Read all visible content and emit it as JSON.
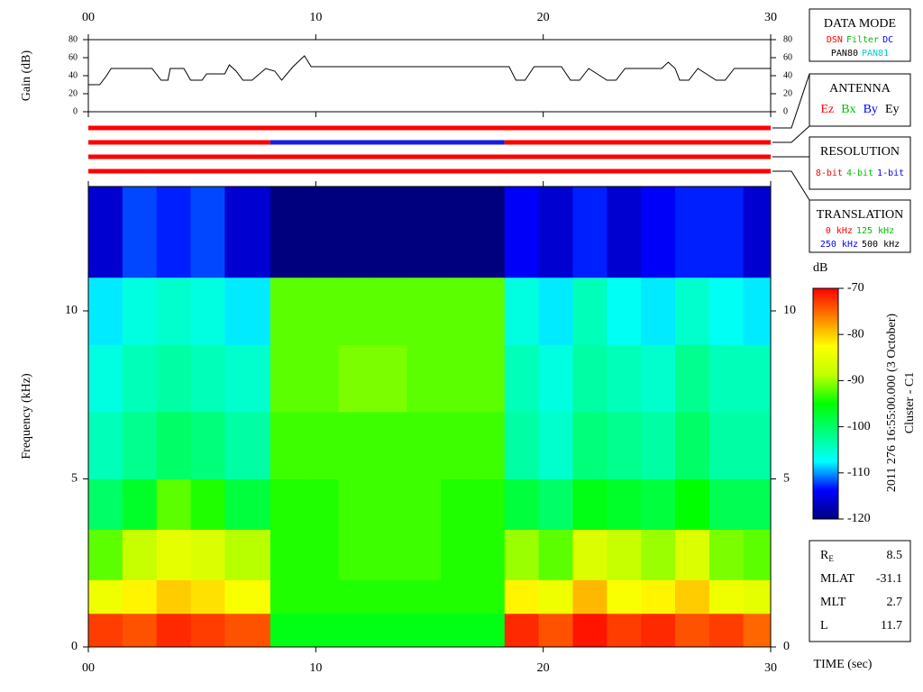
{
  "chart_data": [
    {
      "type": "line",
      "ylabel": "Gain (dB)",
      "x": [
        0,
        0.5,
        0.8,
        1,
        2.8,
        3.2,
        3.5,
        3.6,
        4.2,
        4.5,
        5,
        5.2,
        6,
        6.2,
        6.5,
        6.8,
        7.2,
        7.8,
        8.2,
        8.5,
        9,
        9.5,
        9.8,
        18.5,
        18.8,
        19.2,
        19.6,
        20.8,
        21.2,
        21.6,
        22,
        22.8,
        23.2,
        23.6,
        25.2,
        25.5,
        25.8,
        26,
        26.4,
        26.8,
        27.6,
        28,
        28.4,
        30
      ],
      "values": [
        30,
        30,
        40,
        48,
        48,
        35,
        35,
        48,
        48,
        35,
        35,
        42,
        42,
        52,
        45,
        35,
        35,
        48,
        45,
        35,
        50,
        62,
        50,
        50,
        35,
        35,
        50,
        50,
        35,
        35,
        48,
        35,
        35,
        48,
        48,
        55,
        48,
        35,
        35,
        48,
        35,
        35,
        48,
        48
      ],
      "color": "#000000",
      "xlim": [
        0,
        30
      ],
      "xticks": [
        {
          "value": 0,
          "label": "00"
        },
        10,
        20,
        30
      ],
      "ylim": [
        0,
        80
      ],
      "yticks": [
        0,
        20,
        40,
        60,
        80
      ]
    },
    {
      "type": "timeline",
      "xlim": [
        0,
        30
      ],
      "rows": [
        [
          {
            "start": 0,
            "end": 30,
            "color": "#ff0000"
          }
        ],
        [
          {
            "start": 0,
            "end": 8,
            "color": "#ff0000"
          },
          {
            "start": 8,
            "end": 18.3,
            "color": "#1a1adc"
          },
          {
            "start": 18.3,
            "end": 30,
            "color": "#ff0000"
          }
        ],
        [
          {
            "start": 0,
            "end": 30,
            "color": "#ff0000"
          }
        ],
        [
          {
            "start": 0,
            "end": 30,
            "color": "#ff0000"
          }
        ]
      ]
    },
    {
      "type": "heatmap",
      "xlabel": "TIME (sec)",
      "ylabel": "Frequency (kHz)",
      "xlim": [
        0,
        30
      ],
      "xticks": [
        {
          "value": 0,
          "label": "00"
        },
        10,
        20,
        30
      ],
      "ylim": [
        0,
        13.7
      ],
      "yticks": [
        0,
        5,
        10
      ],
      "x_bins": [
        0,
        1.5,
        3,
        4.5,
        6,
        8,
        9.5,
        11,
        12.5,
        14,
        15.5,
        17,
        18.3,
        19.8,
        21.3,
        22.8,
        24.3,
        25.8,
        27.3,
        28.8,
        30
      ],
      "y_bins": [
        0,
        1,
        2,
        3.5,
        5,
        7,
        9,
        11,
        13.7
      ],
      "z": [
        [
          -73,
          -74,
          -72,
          -73,
          -74,
          -96,
          -96,
          -96,
          -96,
          -96,
          -96,
          -96,
          -72,
          -74,
          -71,
          -73,
          -72,
          -74,
          -73,
          -75
        ],
        [
          -84,
          -82,
          -80,
          -81,
          -83,
          -94,
          -94,
          -94,
          -94,
          -94,
          -94,
          -94,
          -82,
          -84,
          -79,
          -83,
          -82,
          -80,
          -84,
          -85
        ],
        [
          -92,
          -88,
          -85,
          -86,
          -89,
          -94,
          -94,
          -93,
          -93,
          -93,
          -94,
          -94,
          -90,
          -92,
          -86,
          -88,
          -90,
          -86,
          -91,
          -92
        ],
        [
          -100,
          -97,
          -92,
          -94,
          -98,
          -94,
          -94,
          -93,
          -93,
          -93,
          -94,
          -94,
          -98,
          -100,
          -96,
          -97,
          -98,
          -95,
          -99,
          -99
        ],
        [
          -104,
          -102,
          -100,
          -101,
          -103,
          -93,
          -93,
          -93,
          -93,
          -93,
          -93,
          -93,
          -103,
          -105,
          -101,
          -102,
          -103,
          -100,
          -103,
          -103
        ],
        [
          -106,
          -104,
          -103,
          -104,
          -105,
          -92,
          -92,
          -91,
          -91,
          -92,
          -92,
          -92,
          -104,
          -106,
          -103,
          -104,
          -105,
          -102,
          -104,
          -104
        ],
        [
          -108,
          -106,
          -105,
          -106,
          -108,
          -92,
          -92,
          -92,
          -92,
          -92,
          -92,
          -92,
          -106,
          -108,
          -104,
          -107,
          -108,
          -105,
          -107,
          -108
        ],
        [
          -116,
          -112,
          -113,
          -112,
          -116,
          -120,
          -120,
          -120,
          -120,
          -120,
          -120,
          -120,
          -114,
          -116,
          -113,
          -116,
          -114,
          -113,
          -113,
          -116
        ]
      ],
      "zlabel": "dB",
      "zlim": [
        -120,
        -70
      ],
      "zticks": [
        -70,
        -80,
        -90,
        -100,
        -110,
        -120
      ],
      "colormap": [
        "#00007f",
        "#0000ff",
        "#00ffff",
        "#00ff80",
        "#00ff00",
        "#c0ff00",
        "#ffff00",
        "#ff8000",
        "#ff0000"
      ]
    }
  ],
  "boxes": [
    {
      "title": "DATA MODE",
      "rows": [
        [
          {
            "label": "DSN",
            "color": "#ff0000"
          },
          {
            "label": "Filter",
            "color": "#00c000"
          },
          {
            "label": "DC",
            "color": "#0000ff"
          }
        ],
        [
          {
            "label": "PAN80",
            "color": "#000000"
          },
          {
            "label": "PAN81",
            "color": "#00d0d0"
          }
        ]
      ]
    },
    {
      "title": "ANTENNA",
      "rows": [
        [
          {
            "label": "Ez",
            "color": "#ff0000"
          },
          {
            "label": "Bx",
            "color": "#00c000"
          },
          {
            "label": "By",
            "color": "#0000ff"
          },
          {
            "label": "Ey",
            "color": "#000000"
          }
        ]
      ]
    },
    {
      "title": "RESOLUTION",
      "rows": [
        [
          {
            "label": "8-bit",
            "color": "#ff0000"
          },
          {
            "label": "4-bit",
            "color": "#00c000"
          },
          {
            "label": "1-bit",
            "color": "#0000ff"
          }
        ]
      ]
    },
    {
      "title": "TRANSLATION",
      "rows": [
        [
          {
            "label": "0 kHz",
            "color": "#ff0000"
          },
          {
            "label": "125 kHz",
            "color": "#00c000"
          }
        ],
        [
          {
            "label": "250 kHz",
            "color": "#0000ff"
          },
          {
            "label": "500 kHz",
            "color": "#000000"
          }
        ]
      ]
    }
  ],
  "info": [
    {
      "label": "R",
      "sub": "E",
      "value": 8.5
    },
    {
      "label": "MLAT",
      "value": -31.1
    },
    {
      "label": "MLT",
      "value": 2.7
    },
    {
      "label": "L",
      "value": 11.7
    }
  ],
  "timestamp": "2011 276 16:55:00.000 (3 October)",
  "spacecraft": "Cluster - C1"
}
